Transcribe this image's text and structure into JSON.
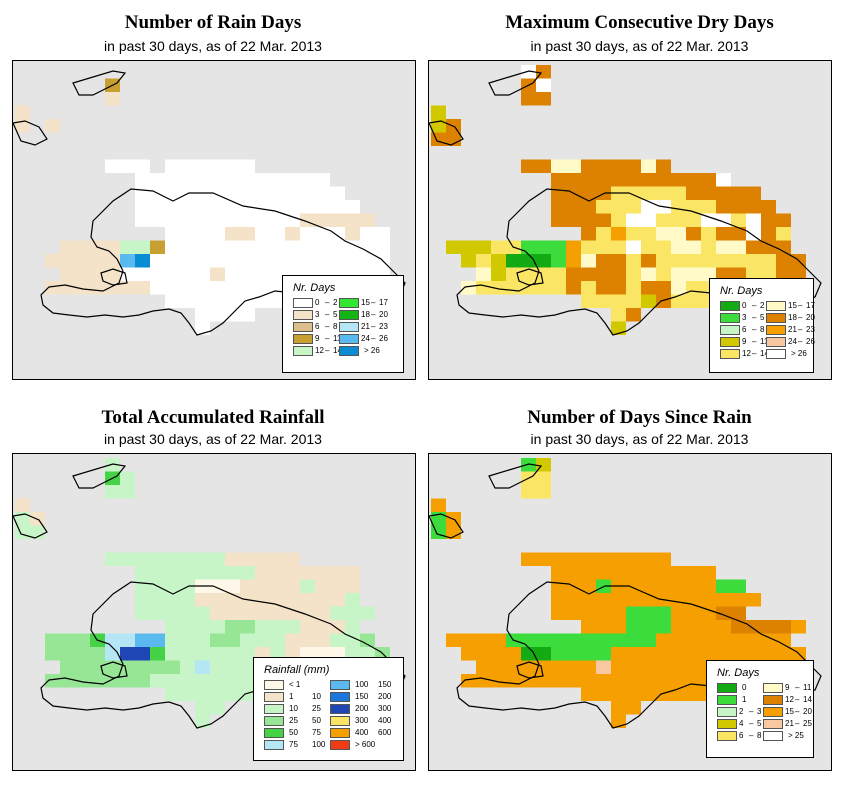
{
  "panels": [
    {
      "id": "rain_days",
      "title": "Number of Rain Days",
      "subtitle": "in past 30 days, as of  22 Mar. 2013",
      "legend_title": "Nr. Days",
      "legend": [
        {
          "color": "#ffffff",
          "range": [
            "0",
            "2"
          ]
        },
        {
          "color": "#f4e3c8",
          "range": [
            "3",
            "5"
          ]
        },
        {
          "color": "#dcbe8d",
          "range": [
            "6",
            "8"
          ]
        },
        {
          "color": "#c8a032",
          "range": [
            "9",
            "11"
          ]
        },
        {
          "color": "#c8f5c8",
          "range": [
            "12",
            "14"
          ]
        },
        {
          "color": "#32e632",
          "range": [
            "15",
            "17"
          ]
        },
        {
          "color": "#13b413",
          "range": [
            "18",
            "20"
          ]
        },
        {
          "color": "#b4e6f5",
          "range": [
            "21",
            "23"
          ]
        },
        {
          "color": "#5abaf0",
          "range": [
            "24",
            "26"
          ]
        },
        {
          "color": "#0a8cd2",
          "range": [
            "> 26"
          ]
        }
      ],
      "grid": [
        "..........................",
        "......3...................",
        "......1...................",
        "1.........................",
        "1.1.......................",
        "..........................",
        ".........................",
        "......000.000000..........",
        "........0000000000000.....",
        "........00000000000000....",
        "........000000000000000...",
        "........0000000000011111..",
        "..........000011001000100.",
        "...1111443000000000000000.",
        "..11111890000000000000000.",
        "...1111000000100000000000.",
        "..1111111000000000000....",
        "..........0000000000......",
        "............0000..........",
        "............0............."
      ]
    },
    {
      "id": "max_dry",
      "title": "Maximum Consecutive Dry Days",
      "subtitle": "in past 30 days, as of  22 Mar. 2013",
      "legend_title": "Nr. Days",
      "legend": [
        {
          "color": "#14aa14",
          "range": [
            "0",
            "2"
          ]
        },
        {
          "color": "#3cdc3c",
          "range": [
            "3",
            "5"
          ]
        },
        {
          "color": "#c8f5c8",
          "range": [
            "6",
            "8"
          ]
        },
        {
          "color": "#d2c800",
          "range": [
            "9",
            "11"
          ]
        },
        {
          "color": "#fae664",
          "range": [
            "12",
            "14"
          ]
        },
        {
          "color": "#fffac8",
          "range": [
            "15",
            "17"
          ]
        },
        {
          "color": "#dc8200",
          "range": [
            "18",
            "20"
          ]
        },
        {
          "color": "#f5a000",
          "range": [
            "21",
            "23"
          ]
        },
        {
          "color": "#fac8a0",
          "range": [
            "24",
            "26"
          ]
        },
        {
          "color": "#ffffff",
          "range": [
            "> 26"
          ]
        }
      ],
      "grid": [
        "......96..................",
        "......69..................",
        "......66..................",
        "3.........................",
        "36........................",
        "66........................",
        ".........................",
        "......6655666656..........",
        "........666666666669......",
        "........66664444466666....",
        "........666444994446666...",
        "........6666499444994966..",
        "..........64744556466964..",
        ".33344111744494455455666.",
        "..34300017566464444444466.",
        "...5344446666454555664466.",
        "..5444444646646654433....",
        "..........4444364446......",
        "............46............",
        "............3............."
      ]
    },
    {
      "id": "total_rain",
      "title": "Total Accumulated Rainfall",
      "subtitle": "in past 30 days, as of  22 Mar. 2013",
      "legend_title": "Rainfall (mm)",
      "legend": [
        {
          "color": "#fff8e8",
          "range": [
            "< 1"
          ]
        },
        {
          "color": "#f4e3c8",
          "range": [
            "1",
            "10"
          ]
        },
        {
          "color": "#c8f5c8",
          "range": [
            "10",
            "25"
          ]
        },
        {
          "color": "#96e696",
          "range": [
            "25",
            "50"
          ]
        },
        {
          "color": "#46d246",
          "range": [
            "50",
            "75"
          ]
        },
        {
          "color": "#b4e6f5",
          "range": [
            "75",
            "100"
          ]
        },
        {
          "color": "#5abaf0",
          "range": [
            "100",
            "150"
          ]
        },
        {
          "color": "#1e78dc",
          "range": [
            "150",
            "200"
          ]
        },
        {
          "color": "#1e46b4",
          "range": [
            "200",
            "300"
          ]
        },
        {
          "color": "#fae664",
          "range": [
            "300",
            "400"
          ]
        },
        {
          "color": "#f5a000",
          "range": [
            "400",
            "600"
          ]
        },
        {
          "color": "#f03c14",
          "range": [
            "> 600"
          ]
        }
      ],
      "grid": [
        "......2...................",
        "......42..................",
        "......22..................",
        "1.........................",
        "21........................",
        "22........................",
        ".........................",
        "......2222222211111.......",
        "........222222221111111...",
        "........222200011112111...",
        "........222211111111112...",
        "........2222211111111222..",
        "..........2222332221112...",
        "..3334556622233222111223..",
        "..33335884222222121000223.",
        "...3333333325222222222222.",
        "..3333333222222222222....",
        "..........2222222222......",
        "............22............",
        "............2............."
      ]
    },
    {
      "id": "days_since",
      "title": "Number of Days Since Rain",
      "subtitle": "in past 30 days, as of  22 Mar. 2013",
      "legend_title": "Nr. Days",
      "legend": [
        {
          "color": "#14aa14",
          "range": [
            "0"
          ]
        },
        {
          "color": "#3cdc3c",
          "range": [
            "1"
          ]
        },
        {
          "color": "#c8f5c8",
          "range": [
            "2",
            "3"
          ]
        },
        {
          "color": "#d2c800",
          "range": [
            "4",
            "5"
          ]
        },
        {
          "color": "#fae664",
          "range": [
            "6",
            "8"
          ]
        },
        {
          "color": "#fffac8",
          "range": [
            "9",
            "11"
          ]
        },
        {
          "color": "#dc8200",
          "range": [
            "12",
            "14"
          ]
        },
        {
          "color": "#f5a000",
          "range": [
            "15",
            "20"
          ]
        },
        {
          "color": "#fac8a0",
          "range": [
            "21",
            "25"
          ]
        },
        {
          "color": "#ffffff",
          "range": [
            "> 25"
          ]
        }
      ],
      "grid": [
        "......13..................",
        "......44..................",
        "......44..................",
        "7.........................",
        "17........................",
        "17........................",
        ".........................",
        "......7777777777..........",
        "........77777777777.......",
        "........7771777777711.....",
        "........77777777777777....",
        "........7777711177766...",
        "..........777111777766667.",
        ".77771111111111777777777.",
        "..77770011117777777777777.",
        "...7777777787777777777777.",
        "..77777777777777777777...",
        "..........7777777777......",
        "............77............",
        "............7............."
      ]
    }
  ]
}
